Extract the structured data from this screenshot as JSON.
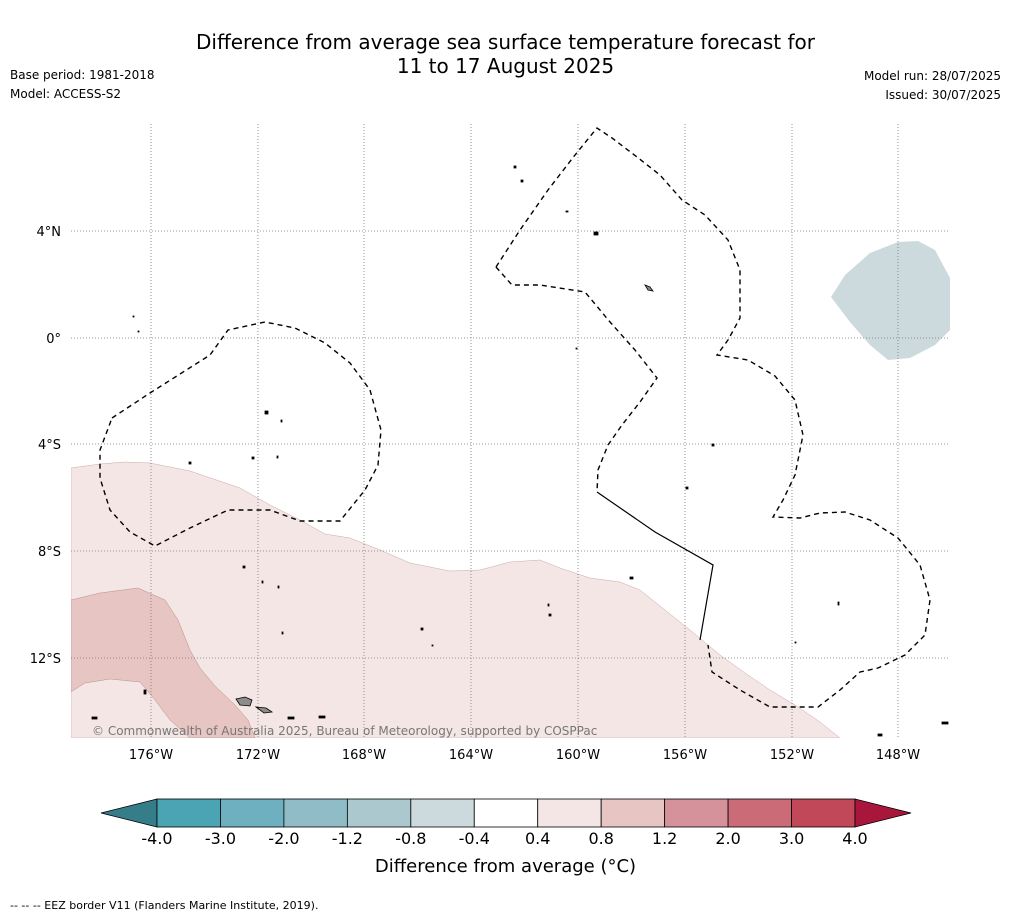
{
  "title_line1": "Difference from average sea surface temperature forecast for",
  "title_line2": "11 to 17 August 2025",
  "base_period": "Base period: 1981-2018",
  "model": "Model: ACCESS-S2",
  "model_run": "Model run: 28/07/2025",
  "issued": "Issued: 30/07/2025",
  "copyright": "© Commonwealth of Australia 2025, Bureau of Meteorology, supported by COSPPac",
  "footer": "--  --  -- EEZ border V11 (Flanders Marine Institute, 2019).",
  "lon_ticks": [
    "176°W",
    "172°W",
    "168°W",
    "164°W",
    "160°W",
    "156°W",
    "152°W",
    "148°W"
  ],
  "lat_ticks": [
    "4°N",
    "0°",
    "4°S",
    "8°S",
    "12°S"
  ],
  "colorbar": {
    "label": "Difference from average (°C)",
    "ticks": [
      "-4.0",
      "-3.0",
      "-2.0",
      "-1.2",
      "-0.8",
      "-0.4",
      "0.4",
      "0.8",
      "1.2",
      "2.0",
      "3.0",
      "4.0"
    ],
    "colors": [
      "#4aa4b4",
      "#6eb0bf",
      "#8fbcc6",
      "#abc8cf",
      "#ccdade",
      "#ffffff",
      "#f4e6e5",
      "#e6c5c2",
      "#d6929a",
      "#cc6b78",
      "#c14858"
    ],
    "under_color": "#357d89",
    "over_color": "#a8173b"
  },
  "land_color": "#8c8c8c"
}
